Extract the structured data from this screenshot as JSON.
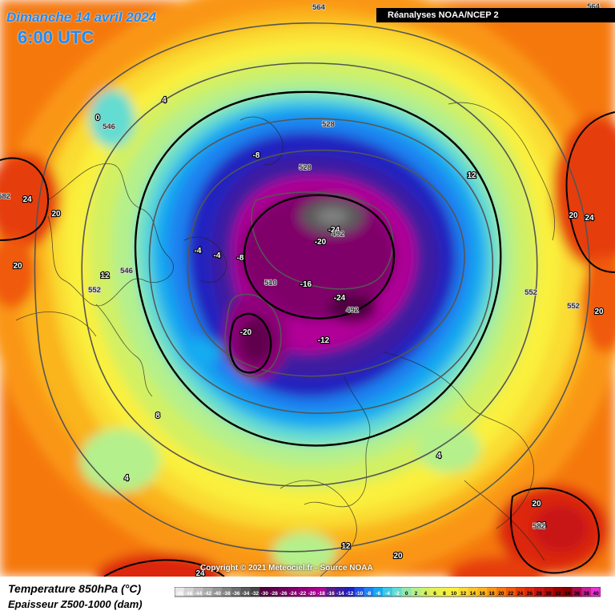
{
  "header": {
    "date_title": "Dimanche 14 avril 2024",
    "time_title": "6:00 UTC",
    "source_label": "Réanalyses NOAA/NCEP 2"
  },
  "footer": {
    "copyright": "Copyright © 2021 Meteociel.fr - Source NOAA",
    "legend_title_1": "Temperature 850hPa (°C)",
    "legend_title_2": "Epaisseur Z500-1000 (dam)"
  },
  "colorbar": {
    "labels": [
      "-48",
      "-46",
      "-44",
      "-42",
      "-40",
      "-38",
      "-36",
      "-34",
      "-32",
      "-30",
      "-28",
      "-26",
      "-24",
      "-22",
      "-20",
      "-18",
      "-16",
      "-14",
      "-12",
      "-10",
      "-8",
      "-6",
      "-4",
      "-2",
      "0",
      "2",
      "4",
      "6",
      "8",
      "10",
      "12",
      "14",
      "16",
      "18",
      "20",
      "22",
      "24",
      "26",
      "28",
      "30",
      "32",
      "34",
      "36",
      "38",
      "40"
    ],
    "colors": [
      "#e6e6e6",
      "#d2d2d2",
      "#bebebe",
      "#aaaaaa",
      "#969696",
      "#828282",
      "#6e6e6e",
      "#5a5a5a",
      "#464646",
      "#500040",
      "#60004e",
      "#70005c",
      "#80006a",
      "#900078",
      "#a00088",
      "#b00098",
      "#5a1a8a",
      "#3c1ca0",
      "#2020c0",
      "#1e50e6",
      "#1e82f0",
      "#14aaf0",
      "#3cc8e6",
      "#64dcd2",
      "#96e6aa",
      "#b4f08c",
      "#d2f064",
      "#e6f050",
      "#f0f046",
      "#faf03c",
      "#fadc32",
      "#fac828",
      "#fab41e",
      "#fa9614",
      "#f5780f",
      "#f05a0a",
      "#e63c0a",
      "#dc280a",
      "#c81414",
      "#b40a0a",
      "#a00000",
      "#8c0000",
      "#aa0a4b",
      "#c81e96",
      "#e632d2"
    ]
  },
  "map_labels": {
    "temperature": [
      "-24",
      "-24",
      "-20",
      "-20",
      "-16",
      "-12",
      "-8",
      "-8",
      "-4",
      "-4",
      "0",
      "4",
      "4",
      "4",
      "8",
      "12",
      "12",
      "12",
      "20",
      "20",
      "20",
      "20",
      "20",
      "20",
      "24",
      "24",
      "24",
      "24"
    ],
    "thickness": [
      "492",
      "492",
      "510",
      "528",
      "528",
      "546",
      "546",
      "552",
      "552",
      "552",
      "564",
      "564",
      "582",
      "582"
    ]
  }
}
